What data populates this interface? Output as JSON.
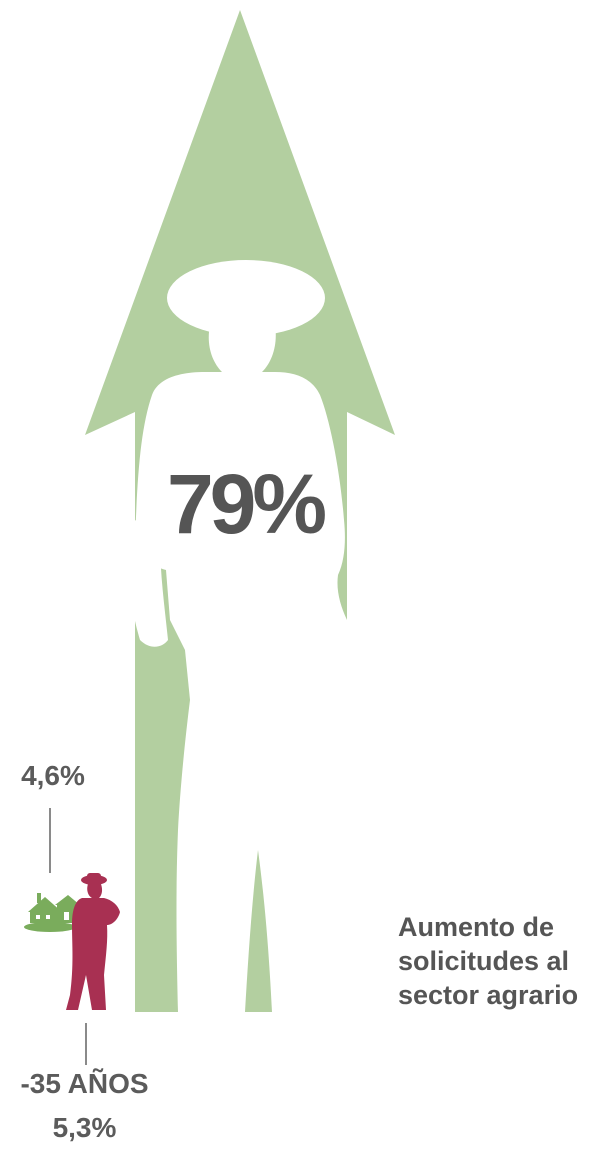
{
  "main_stat": {
    "value": "79%"
  },
  "farm_stat": {
    "value": "4,6%"
  },
  "age_stat": {
    "label": "-35 AÑOS",
    "value": "5,3%"
  },
  "caption": {
    "lines": [
      "Aumento de",
      "solicitudes al",
      "sector agrario"
    ]
  },
  "icons": {
    "arrow": "up-arrow-icon",
    "large_figure": "farmer-silhouette-icon",
    "small_figure": "farmer-icon",
    "farm": "farmhouse-icon"
  },
  "colors": {
    "arrow": "#b3cfa0",
    "figure_cutout": "#ffffff",
    "small_figure": "#a83052",
    "farm": "#7aac5c",
    "text": "#555555"
  }
}
